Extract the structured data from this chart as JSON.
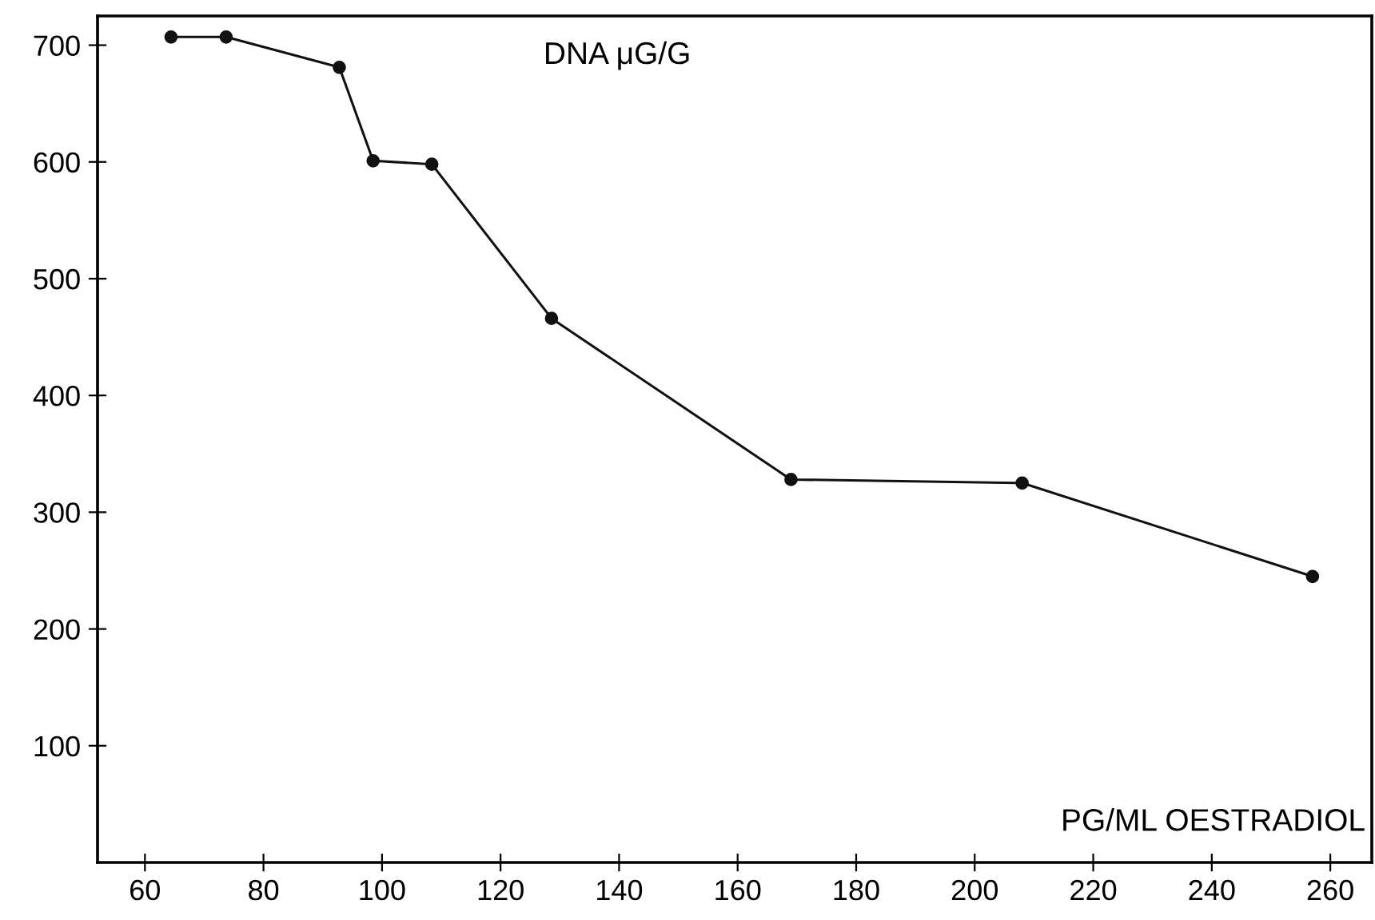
{
  "chart_data": {
    "type": "line",
    "xlabel": "PG/ML OESTRADIOL",
    "ylabel": "DNA μG/G",
    "x": [
      64.4,
      73.7,
      92.8,
      98.5,
      108.4,
      128.6,
      169,
      208,
      257
    ],
    "series": [
      {
        "color": "#111111",
        "values": [
          707,
          707,
          681,
          601,
          598,
          466,
          328,
          325,
          245
        ]
      }
    ],
    "xlim": [
      52,
      267
    ],
    "xticks": [
      60,
      80,
      100,
      120,
      140,
      160,
      180,
      200,
      220,
      240,
      260
    ],
    "ylim": [
      0,
      725
    ],
    "yticks": [
      100,
      200,
      300,
      400,
      500,
      600,
      700
    ],
    "marker": "circle",
    "line_style": "solid",
    "grid": false,
    "legend": false
  }
}
